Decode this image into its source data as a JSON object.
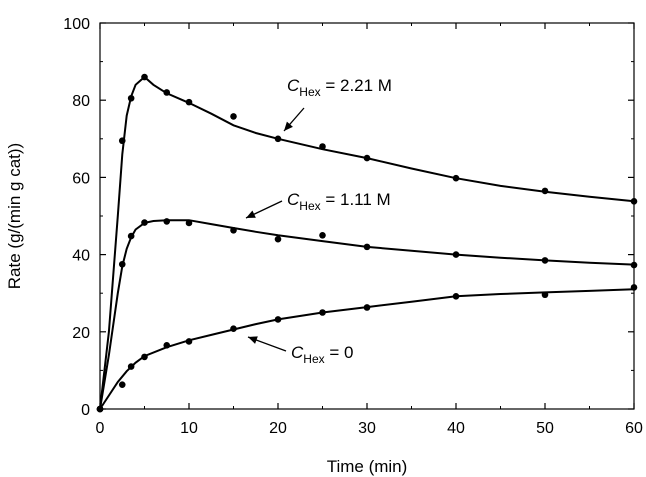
{
  "chart_data": {
    "type": "line",
    "xlabel": "Time (min)",
    "ylabel": "Rate (g/(min g cat))",
    "xlim": [
      0,
      60
    ],
    "ylim": [
      0,
      100
    ],
    "xticks": [
      0,
      10,
      20,
      30,
      40,
      50,
      60
    ],
    "yticks": [
      0,
      20,
      40,
      60,
      80,
      100
    ],
    "grid": false,
    "legend": "none",
    "series": [
      {
        "name": "C_Hex = 2.21 M",
        "label_main": "C",
        "label_sub": "Hex",
        "label_value": " = 2.21 M",
        "points": [
          [
            0,
            0
          ],
          [
            2.5,
            69.5
          ],
          [
            3.5,
            80.5
          ],
          [
            5,
            86
          ],
          [
            7.5,
            82
          ],
          [
            10,
            79.5
          ],
          [
            15,
            75.8
          ],
          [
            20,
            70
          ],
          [
            25,
            68
          ],
          [
            30,
            65
          ],
          [
            40,
            59.8
          ],
          [
            50,
            56.5
          ],
          [
            60,
            53.8
          ]
        ],
        "curve": [
          [
            0,
            0
          ],
          [
            1,
            20
          ],
          [
            2,
            50
          ],
          [
            2.5,
            66
          ],
          [
            3,
            76
          ],
          [
            3.5,
            81
          ],
          [
            4,
            84
          ],
          [
            5,
            86
          ],
          [
            6,
            84
          ],
          [
            7.5,
            81.8
          ],
          [
            10,
            79.3
          ],
          [
            12.5,
            76.5
          ],
          [
            15,
            73.5
          ],
          [
            17.5,
            71.5
          ],
          [
            20,
            70
          ],
          [
            25,
            67.3
          ],
          [
            30,
            65
          ],
          [
            35,
            62.3
          ],
          [
            40,
            59.8
          ],
          [
            45,
            57.8
          ],
          [
            50,
            56.3
          ],
          [
            55,
            55
          ],
          [
            60,
            53.8
          ]
        ]
      },
      {
        "name": "C_Hex = 1.11 M",
        "label_main": "C",
        "label_sub": "Hex",
        "label_value": " = 1.11 M",
        "points": [
          [
            0,
            0
          ],
          [
            2.5,
            37.5
          ],
          [
            3.5,
            44.8
          ],
          [
            5,
            48.3
          ],
          [
            7.5,
            48.6
          ],
          [
            10,
            48.2
          ],
          [
            15,
            46.3
          ],
          [
            20,
            44
          ],
          [
            25,
            45
          ],
          [
            30,
            42
          ],
          [
            40,
            40
          ],
          [
            50,
            38.5
          ],
          [
            60,
            37.3
          ]
        ],
        "curve": [
          [
            0,
            0
          ],
          [
            1,
            14
          ],
          [
            2,
            30
          ],
          [
            2.5,
            37
          ],
          [
            3,
            41.5
          ],
          [
            3.5,
            44.5
          ],
          [
            4,
            46.5
          ],
          [
            5,
            48.2
          ],
          [
            6,
            48.7
          ],
          [
            7.5,
            48.9
          ],
          [
            10,
            48.9
          ],
          [
            12.5,
            47.9
          ],
          [
            15,
            46.9
          ],
          [
            17.5,
            45.9
          ],
          [
            20,
            45
          ],
          [
            25,
            43.5
          ],
          [
            30,
            42
          ],
          [
            35,
            41
          ],
          [
            40,
            40
          ],
          [
            45,
            39.2
          ],
          [
            50,
            38.5
          ],
          [
            55,
            37.9
          ],
          [
            60,
            37.4
          ]
        ]
      },
      {
        "name": "C_Hex = 0",
        "label_main": "C",
        "label_sub": "Hex",
        "label_value": " = 0",
        "points": [
          [
            0,
            0
          ],
          [
            2.5,
            6.3
          ],
          [
            3.5,
            11
          ],
          [
            5,
            13.5
          ],
          [
            7.5,
            16.5
          ],
          [
            10,
            17.5
          ],
          [
            15,
            20.8
          ],
          [
            20,
            23.2
          ],
          [
            25,
            25
          ],
          [
            30,
            26.3
          ],
          [
            40,
            29.2
          ],
          [
            50,
            29.6
          ],
          [
            60,
            31.5
          ]
        ],
        "curve": [
          [
            0,
            0
          ],
          [
            1,
            3.5
          ],
          [
            2,
            7
          ],
          [
            3,
            9.8
          ],
          [
            4,
            12
          ],
          [
            5,
            13.7
          ],
          [
            7.5,
            16
          ],
          [
            10,
            17.8
          ],
          [
            12.5,
            19.2
          ],
          [
            15,
            20.6
          ],
          [
            17.5,
            22
          ],
          [
            20,
            23.2
          ],
          [
            25,
            25
          ],
          [
            30,
            26.4
          ],
          [
            35,
            27.8
          ],
          [
            40,
            29.2
          ],
          [
            45,
            29.8
          ],
          [
            50,
            30.2
          ],
          [
            55,
            30.6
          ],
          [
            60,
            31
          ]
        ]
      }
    ]
  }
}
